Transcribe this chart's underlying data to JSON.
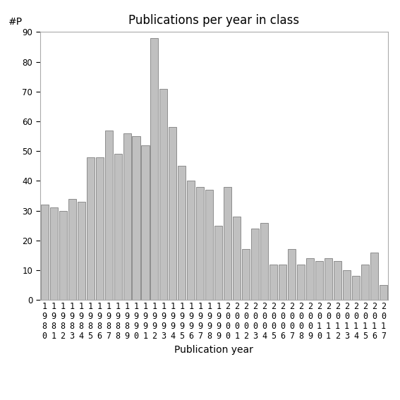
{
  "title": "Publications per year in class",
  "xlabel": "Publication year",
  "ylabel": "#P",
  "years": [
    "1980",
    "1981",
    "1982",
    "1983",
    "1984",
    "1985",
    "1986",
    "1987",
    "1988",
    "1989",
    "1990",
    "1991",
    "1992",
    "1993",
    "1994",
    "1995",
    "1996",
    "1997",
    "1998",
    "1999",
    "2000",
    "2001",
    "2002",
    "2003",
    "2004",
    "2005",
    "2006",
    "2007",
    "2008",
    "2009",
    "2010",
    "2011",
    "2012",
    "2013",
    "2014",
    "2015",
    "2016",
    "2017"
  ],
  "values": [
    32,
    31,
    30,
    34,
    33,
    48,
    48,
    57,
    49,
    56,
    55,
    52,
    88,
    71,
    58,
    45,
    40,
    38,
    37,
    25,
    38,
    28,
    17,
    24,
    26,
    12,
    12,
    17,
    12,
    14,
    13,
    14,
    13,
    10,
    8,
    12,
    16,
    5
  ],
  "bar_color": "#c0c0c0",
  "bar_edgecolor": "#808080",
  "ylim": [
    0,
    90
  ],
  "yticks": [
    0,
    10,
    20,
    30,
    40,
    50,
    60,
    70,
    80,
    90
  ],
  "background_color": "#ffffff",
  "title_fontsize": 12,
  "axis_label_fontsize": 10,
  "tick_fontsize": 8.5
}
